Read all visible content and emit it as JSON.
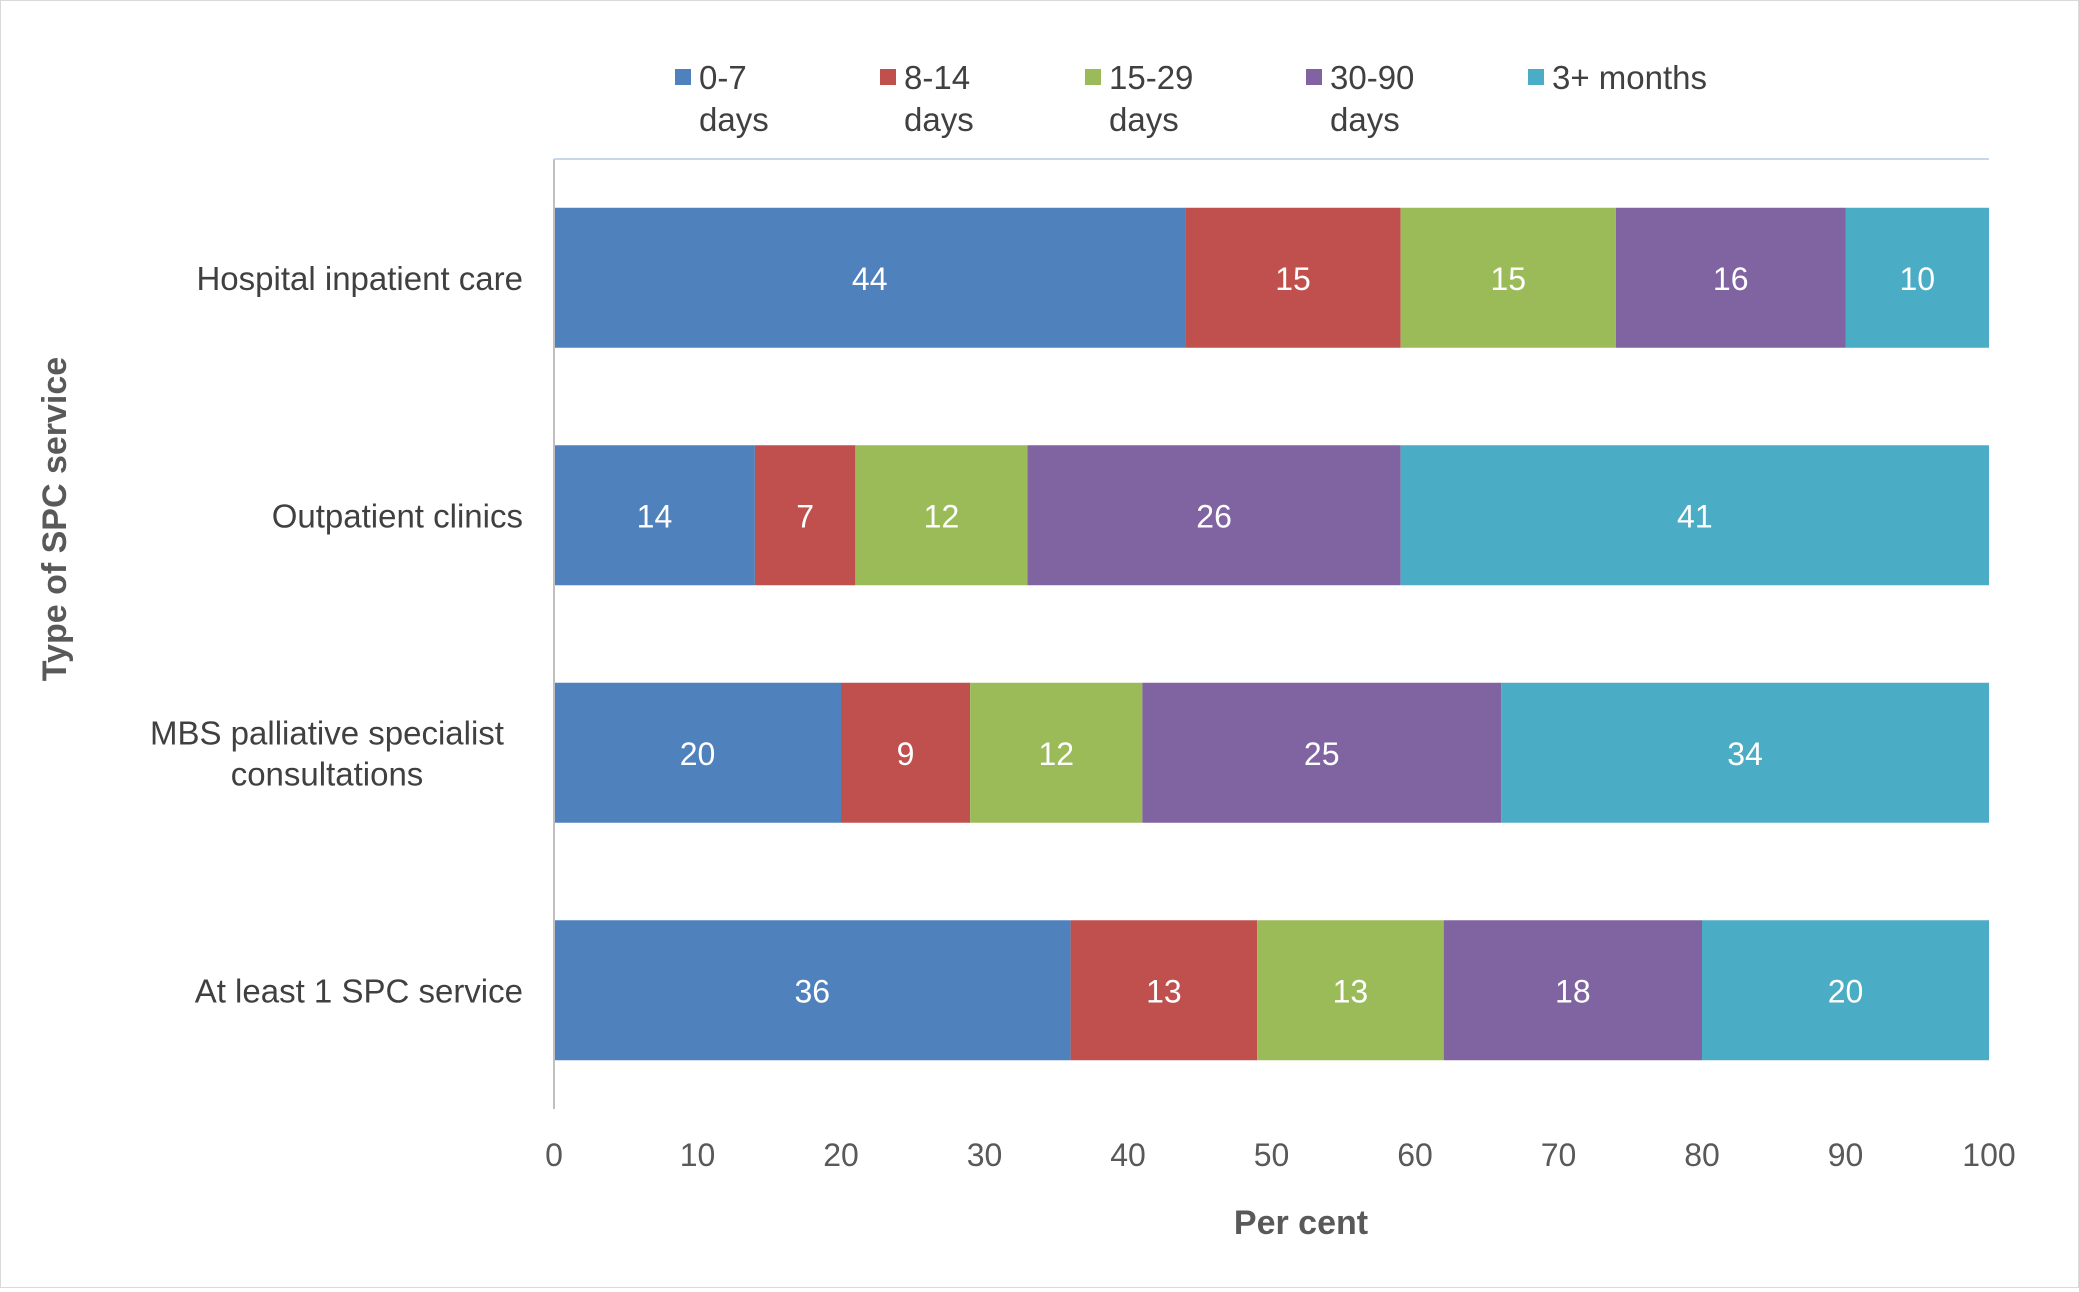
{
  "chart_data": {
    "type": "bar",
    "orientation": "horizontal",
    "stacked": true,
    "title": "",
    "xlabel": "Per cent",
    "ylabel": "Type of SPC service",
    "xlim": [
      0,
      100
    ],
    "x_ticks": [
      "0",
      "10",
      "20",
      "30",
      "40",
      "50",
      "60",
      "70",
      "80",
      "90",
      "100"
    ],
    "grid": false,
    "legend_position": "top",
    "categories": [
      [
        "Hospital inpatient care"
      ],
      [
        "Outpatient clinics"
      ],
      [
        "MBS palliative specialist",
        "consultations"
      ],
      [
        "At least 1 SPC service"
      ]
    ],
    "series": [
      {
        "name": [
          "0-7",
          "days"
        ],
        "color": "#4F81BD",
        "values": [
          44,
          14,
          20,
          36
        ]
      },
      {
        "name": [
          "8-14",
          "days"
        ],
        "color": "#C0504D",
        "values": [
          15,
          7,
          9,
          13
        ]
      },
      {
        "name": [
          "15-29",
          "days"
        ],
        "color": "#9BBB59",
        "values": [
          15,
          12,
          12,
          13
        ]
      },
      {
        "name": [
          "30-90",
          "days"
        ],
        "color": "#8064A2",
        "values": [
          16,
          26,
          25,
          18
        ]
      },
      {
        "name": [
          "3+ months"
        ],
        "color": "#4BACC6",
        "values": [
          10,
          41,
          34,
          20
        ]
      }
    ]
  }
}
